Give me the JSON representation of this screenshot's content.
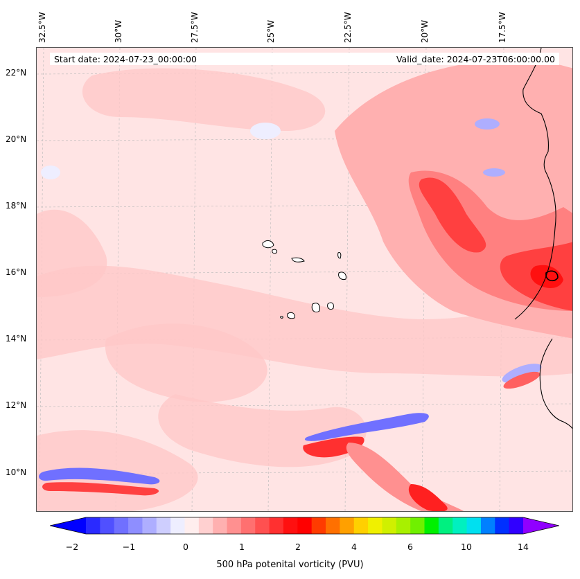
{
  "header": {
    "start_date": "Start date: 2024-07-23_00:00:00",
    "valid_date": "Valid_date: 2024-07-23T06:00:00.00"
  },
  "map": {
    "longitude_labels": [
      "32.5°W",
      "30°W",
      "27.5°W",
      "25°W",
      "22.5°W",
      "20°W",
      "17.5°W"
    ],
    "latitude_labels": [
      "22°N",
      "20°N",
      "18°N",
      "16°N",
      "14°N",
      "12°N",
      "10°N"
    ],
    "field_colors": {
      "background": "#ffe4e4",
      "light_red": "#ffc8c8",
      "mid_red": "#ff9a9a",
      "strong_red": "#ff4040",
      "deep_red": "#ff1010",
      "light_blue": "#e8ecff",
      "mid_blue": "#8a8cff",
      "deep_blue": "#3030ff"
    }
  },
  "colorbar": {
    "ticks": [
      "−2",
      "−1",
      "0",
      "1",
      "2",
      "4",
      "6",
      "10",
      "14"
    ],
    "label": "500 hPa potenital vorticity (PVU)",
    "colors": [
      "#0000ff",
      "#2a2aff",
      "#5050ff",
      "#7070ff",
      "#8e8eff",
      "#aeaeff",
      "#cecefe",
      "#eeeeff",
      "#ffeeee",
      "#ffd0d0",
      "#ffb0b0",
      "#ff9090",
      "#ff7070",
      "#ff5050",
      "#ff3030",
      "#ff1010",
      "#ff0000",
      "#ff3b00",
      "#ff7000",
      "#ffa000",
      "#ffd000",
      "#f0f000",
      "#d0f000",
      "#a8f000",
      "#70f000",
      "#00f000",
      "#00f080",
      "#00f0c0",
      "#00e0f0",
      "#0080ff",
      "#0030ff",
      "#3000ff",
      "#9000ff"
    ]
  }
}
